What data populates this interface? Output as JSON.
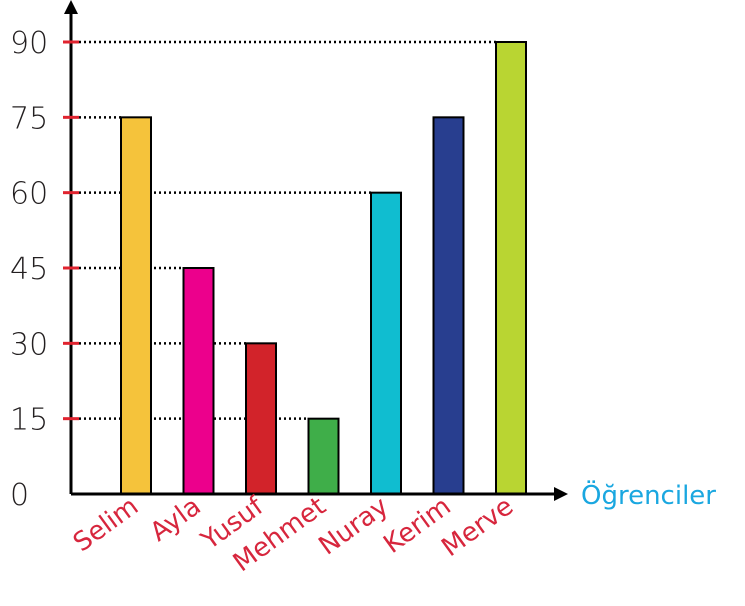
{
  "chart_data": {
    "type": "bar",
    "categories": [
      "Selim",
      "Ayla",
      "Yusuf",
      "Mehmet",
      "Nuray",
      "Kerim",
      "Merve"
    ],
    "values": [
      75,
      45,
      30,
      15,
      60,
      75,
      90
    ],
    "bar_colors": [
      "#f5c33b",
      "#ec008c",
      "#d2232a",
      "#3fae49",
      "#10bdd0",
      "#283e8f",
      "#b9d532"
    ],
    "y_ticks": [
      "0",
      "15",
      "30",
      "45",
      "60",
      "75",
      "90"
    ],
    "ylim": [
      0,
      90
    ],
    "xlabel": "Öğrenciler",
    "ylabel": "",
    "title": "",
    "grid": "dotted reference lines to bar tops",
    "colors": {
      "axis": "#000000",
      "tick_mark": "#e0232f",
      "category_label": "#d7263d",
      "xlabel": "#1aa7e0"
    }
  }
}
